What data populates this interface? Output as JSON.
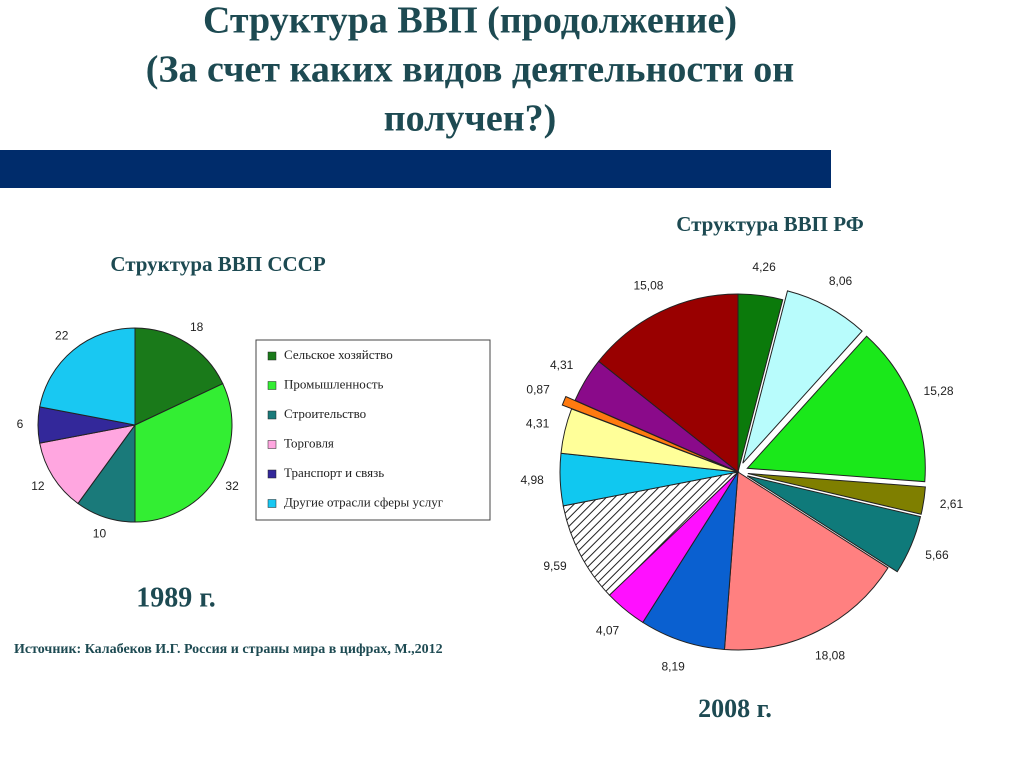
{
  "title_lines": [
    "Структура ВВП (продолжение)",
    "(За счет каких видов деятельности он",
    "получен?)"
  ],
  "source": "Источник: Калабеков И.Г. Россия и страны мира в цифрах, М.,2012",
  "chart_data": [
    {
      "type": "pie",
      "title": "Структура ВВП СССР",
      "caption": "1989 г.",
      "categories": [
        "Сельское хозяйство",
        "Промышленность",
        "Строительство",
        "Торговля",
        "Транспорт и связь",
        "Другие отрасли сферы услуг"
      ],
      "values": [
        18,
        32,
        10,
        12,
        6,
        22
      ],
      "colors": [
        "#1a7a1a",
        "#33ee33",
        "#1a7a7a",
        "#ffa6e0",
        "#33289a",
        "#19c8f2"
      ],
      "legend": true
    },
    {
      "type": "pie",
      "title": "Структура ВВП РФ",
      "caption": "2008 г.",
      "values": [
        4.26,
        8.06,
        15.28,
        2.61,
        5.66,
        18.08,
        8.19,
        4.07,
        9.59,
        4.98,
        4.31,
        0.87,
        4.31,
        15.08
      ],
      "value_labels": [
        "4,26",
        "8,06",
        "15,28",
        "2,61",
        "5,66",
        "18,08",
        "8,19",
        "4,07",
        "9,59",
        "4,98",
        "4,31",
        "0,87",
        "4,31",
        "15,08"
      ],
      "colors": [
        "#0b7a0b",
        "#b8fcfc",
        "#1ae81a",
        "#7f7f00",
        "#0f7a7a",
        "#ff8080",
        "#0a60d0",
        "#ff10ff",
        "#ffffff",
        "#10c8f0",
        "#ffff99",
        "#ff7a10",
        "#8a0a8a",
        "#990000"
      ],
      "hatch": [
        false,
        false,
        false,
        false,
        false,
        false,
        false,
        false,
        true,
        false,
        false,
        false,
        false,
        false
      ],
      "exploded": [
        false,
        true,
        true,
        true,
        true,
        false,
        false,
        false,
        false,
        false,
        false,
        true,
        false,
        false
      ],
      "legend": false
    }
  ]
}
